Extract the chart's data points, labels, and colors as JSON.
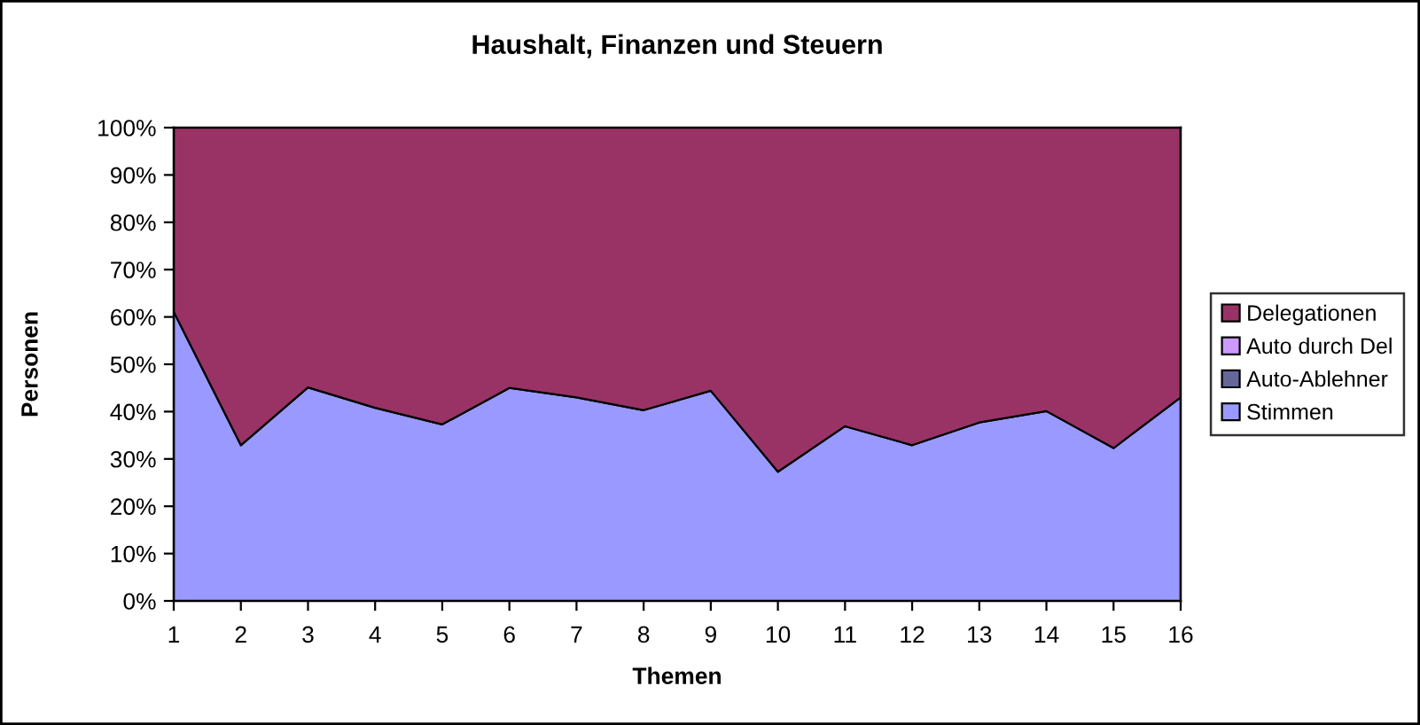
{
  "chart_data": {
    "type": "area",
    "title": "Haushalt, Finanzen und Steuern",
    "xlabel": "Themen",
    "ylabel": "Personen",
    "categories": [
      "1",
      "2",
      "3",
      "4",
      "5",
      "6",
      "7",
      "8",
      "9",
      "10",
      "11",
      "12",
      "13",
      "14",
      "15",
      "16"
    ],
    "stacked": true,
    "series": [
      {
        "name": "Stimmen",
        "color": "#9999ff",
        "values": [
          61.1,
          32.9,
          45.1,
          40.8,
          37.3,
          45.0,
          43.0,
          40.3,
          44.4,
          27.3,
          36.9,
          32.9,
          37.7,
          40.1,
          32.3,
          43.0
        ]
      },
      {
        "name": "Auto-Ablehner",
        "color": "#666699",
        "values": [
          null,
          null,
          null,
          null,
          null,
          null,
          null,
          null,
          null,
          null,
          null,
          null,
          null,
          null,
          null,
          null
        ]
      },
      {
        "name": "Auto durch Del",
        "color": "#cc99ff",
        "values": [
          null,
          null,
          null,
          null,
          null,
          null,
          null,
          null,
          null,
          null,
          null,
          null,
          null,
          null,
          null,
          null
        ]
      },
      {
        "name": "Delegationen",
        "color": "#993366",
        "values": [
          38.9,
          67.1,
          54.9,
          59.2,
          62.7,
          55.0,
          57.0,
          59.7,
          55.6,
          72.7,
          63.1,
          67.1,
          62.3,
          59.9,
          67.7,
          57.0
        ]
      }
    ],
    "ylim": [
      0,
      100
    ],
    "yticks": [
      {
        "value": 0,
        "label": "0%"
      },
      {
        "value": 10,
        "label": "10%"
      },
      {
        "value": 20,
        "label": "20%"
      },
      {
        "value": 30,
        "label": "30%"
      },
      {
        "value": 40,
        "label": "40%"
      },
      {
        "value": 50,
        "label": "50%"
      },
      {
        "value": 60,
        "label": "60%"
      },
      {
        "value": 70,
        "label": "70%"
      },
      {
        "value": 80,
        "label": "80%"
      },
      {
        "value": 90,
        "label": "90%"
      },
      {
        "value": 100,
        "label": "100%"
      }
    ],
    "legend": "right"
  }
}
